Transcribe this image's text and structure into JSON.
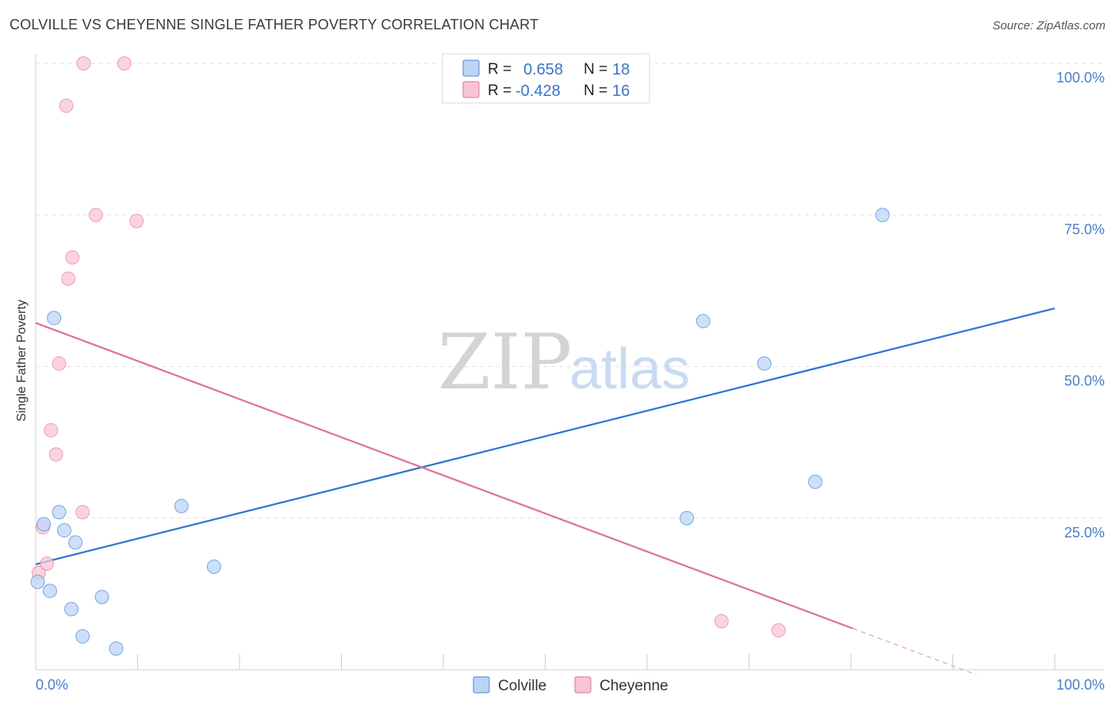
{
  "title": "COLVILLE VS CHEYENNE SINGLE FATHER POVERTY CORRELATION CHART",
  "source": "Source: ZipAtlas.com",
  "watermark": {
    "zip": "ZIP",
    "atlas": "atlas"
  },
  "colors": {
    "colville": "#4a86d8",
    "colville_fill": "#bcd5f5",
    "cheyenne": "#e0709a",
    "cheyenne_fill": "#f8c4d4",
    "axis_label": "#4a7ec8"
  },
  "legend": {
    "r_label": "R =",
    "n_label": "N =",
    "colville_r": "0.658",
    "colville_n": "18",
    "cheyenne_r": "-0.428",
    "cheyenne_n": "16"
  },
  "chart_data": {
    "type": "scatter",
    "title": "COLVILLE VS CHEYENNE SINGLE FATHER POVERTY CORRELATION CHART",
    "xlabel": "",
    "ylabel": "Single Father Poverty",
    "xlim": [
      0,
      100
    ],
    "ylim": [
      0,
      100
    ],
    "x_tick_labels": [
      "0.0%",
      "100.0%"
    ],
    "y_tick_labels": [
      "100.0%",
      "75.0%",
      "50.0%",
      "25.0%"
    ],
    "y_ticks": [
      100,
      75,
      50,
      25
    ],
    "grid": true,
    "legend_position": "top-center",
    "series": [
      {
        "name": "Colville",
        "points": [
          [
            0.2,
            14.5
          ],
          [
            0.8,
            24
          ],
          [
            1.4,
            13
          ],
          [
            1.8,
            58
          ],
          [
            2.3,
            26
          ],
          [
            2.8,
            23
          ],
          [
            3.5,
            10
          ],
          [
            3.9,
            21
          ],
          [
            4.6,
            5.5
          ],
          [
            6.5,
            12
          ],
          [
            7.9,
            3.5
          ],
          [
            14.3,
            27
          ],
          [
            17.5,
            17
          ],
          [
            63.9,
            25
          ],
          [
            65.5,
            57.5
          ],
          [
            71.5,
            50.5
          ],
          [
            76.5,
            31
          ],
          [
            83.1,
            75
          ]
        ],
        "trend": {
          "x": [
            0,
            100
          ],
          "y": [
            17.4,
            59.6
          ]
        }
      },
      {
        "name": "Cheyenne",
        "points": [
          [
            0.3,
            16
          ],
          [
            0.7,
            23.5
          ],
          [
            1.1,
            17.5
          ],
          [
            1.5,
            39.5
          ],
          [
            2.0,
            35.5
          ],
          [
            2.3,
            50.5
          ],
          [
            3.0,
            93
          ],
          [
            3.2,
            64.5
          ],
          [
            3.6,
            68
          ],
          [
            4.6,
            26
          ],
          [
            4.7,
            100
          ],
          [
            5.9,
            75
          ],
          [
            8.7,
            100
          ],
          [
            9.9,
            74
          ],
          [
            67.3,
            8
          ],
          [
            72.9,
            6.5
          ]
        ],
        "trend": {
          "x": [
            0,
            80.2
          ],
          "y": [
            57.2,
            6.8
          ]
        },
        "trend_dashed": {
          "x": [
            80.2,
            92.3
          ],
          "y": [
            6.8,
            -0.8
          ]
        }
      }
    ]
  },
  "bottom_legend": [
    "Colville",
    "Cheyenne"
  ]
}
